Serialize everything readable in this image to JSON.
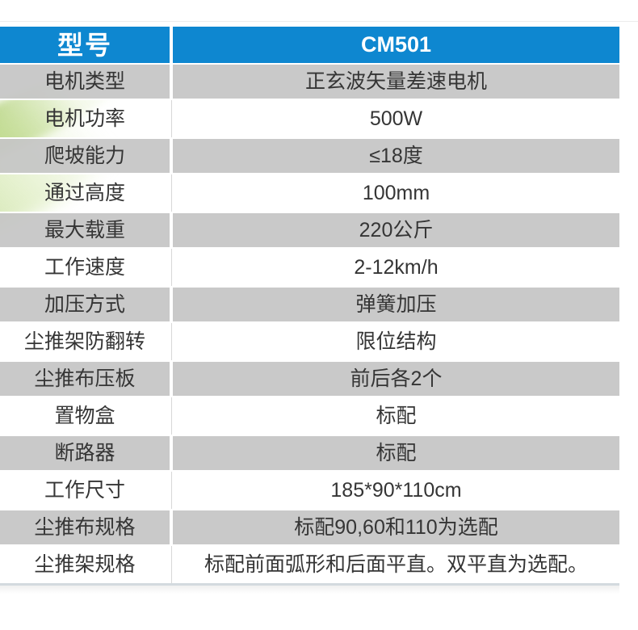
{
  "colors": {
    "header_blue": "#0e87d0",
    "row_gray": "#c9c9c9",
    "text_dark": "#353535",
    "leaf_green": "#a8cf6a"
  },
  "table": {
    "header": {
      "label": "型号",
      "value": "CM501"
    },
    "rows": [
      {
        "label": "电机类型",
        "value": "正玄波矢量差速电机"
      },
      {
        "label": "电机功率",
        "value": "500W"
      },
      {
        "label": "爬坡能力",
        "value": "≤18度"
      },
      {
        "label": "通过高度",
        "value": "100mm"
      },
      {
        "label": "最大载重",
        "value": "220公斤"
      },
      {
        "label": "工作速度",
        "value": "2-12km/h"
      },
      {
        "label": "加压方式",
        "value": "弹簧加压"
      },
      {
        "label": "尘推架防翻转",
        "value": "限位结构"
      },
      {
        "label": "尘推布压板",
        "value": "前后各2个"
      },
      {
        "label": "置物盒",
        "value": "标配"
      },
      {
        "label": "断路器",
        "value": "标配"
      },
      {
        "label": "工作尺寸",
        "value": "185*90*110cm"
      },
      {
        "label": "尘推布规格",
        "value": "标配90,60和110为选配"
      },
      {
        "label": "尘推架规格",
        "value": "标配前面弧形和后面平直。双平直为选配。"
      }
    ]
  }
}
